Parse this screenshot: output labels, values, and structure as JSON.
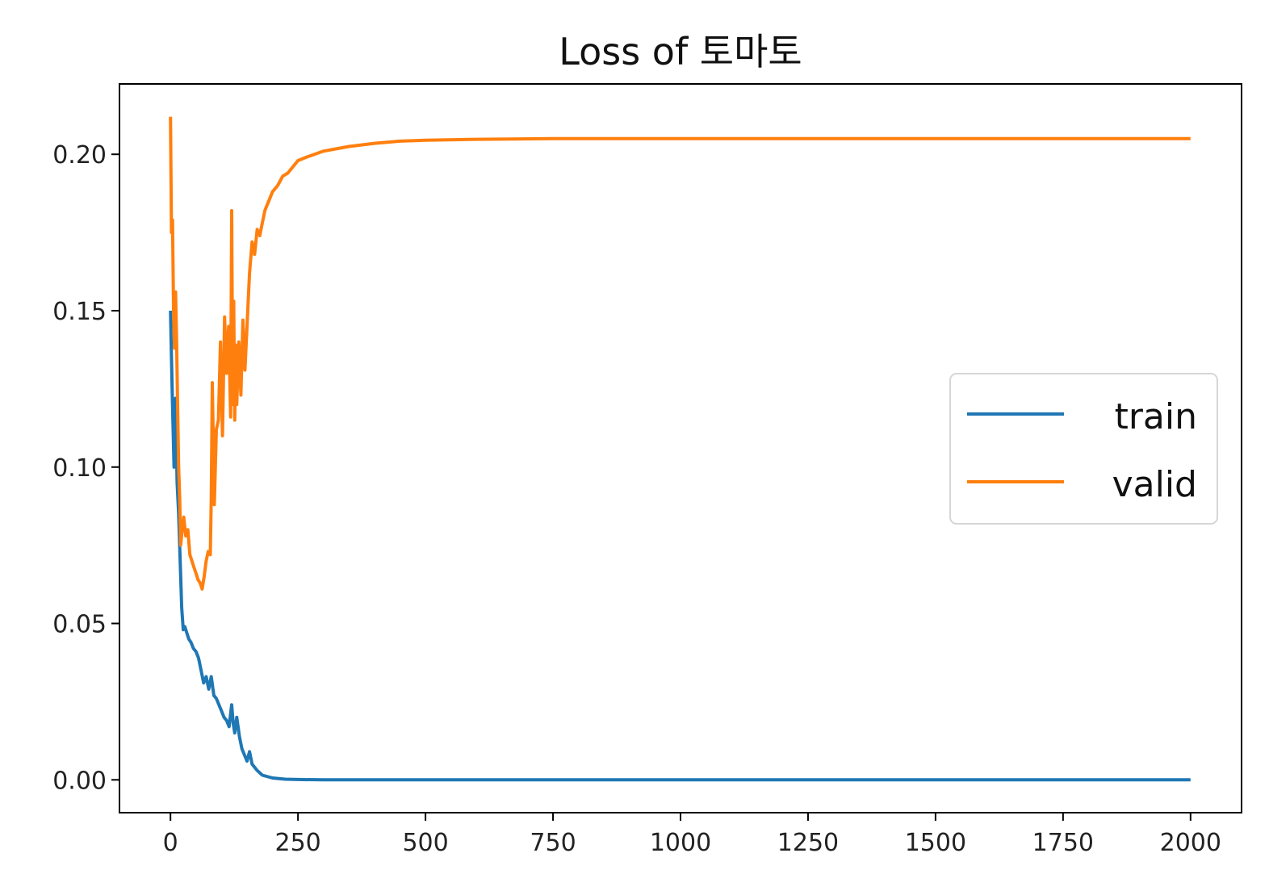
{
  "chart_data": {
    "type": "line",
    "title": "Loss of 토마토",
    "xlabel": "",
    "ylabel": "",
    "xlim": [
      -100,
      2100
    ],
    "ylim": [
      -0.0105,
      0.2225
    ],
    "xticks": [
      0,
      250,
      500,
      750,
      1000,
      1250,
      1500,
      1750,
      2000
    ],
    "xtick_labels": [
      "0",
      "250",
      "500",
      "750",
      "1000",
      "1250",
      "1500",
      "1750",
      "2000"
    ],
    "yticks": [
      0.0,
      0.05,
      0.1,
      0.15,
      0.2
    ],
    "ytick_labels": [
      "0.00",
      "0.05",
      "0.10",
      "0.15",
      "0.20"
    ],
    "grid": false,
    "legend_position": "right",
    "series": [
      {
        "name": "train",
        "color": "#1f77b4",
        "x": [
          0,
          2,
          4,
          7,
          10,
          13,
          16,
          19,
          22,
          25,
          28,
          32,
          36,
          40,
          45,
          50,
          55,
          60,
          65,
          70,
          75,
          80,
          85,
          90,
          95,
          100,
          105,
          110,
          115,
          120,
          123,
          126,
          130,
          135,
          140,
          145,
          150,
          155,
          160,
          170,
          180,
          200,
          225,
          250,
          300,
          400,
          500,
          750,
          1000,
          1250,
          1500,
          1750,
          2000
        ],
        "y": [
          0.15,
          0.135,
          0.12,
          0.1,
          0.122,
          0.095,
          0.085,
          0.07,
          0.055,
          0.048,
          0.049,
          0.047,
          0.045,
          0.044,
          0.042,
          0.041,
          0.039,
          0.035,
          0.031,
          0.033,
          0.029,
          0.033,
          0.027,
          0.026,
          0.024,
          0.022,
          0.02,
          0.019,
          0.017,
          0.024,
          0.018,
          0.015,
          0.02,
          0.014,
          0.01,
          0.008,
          0.006,
          0.009,
          0.005,
          0.003,
          0.0015,
          0.0006,
          0.0002,
          0.0001,
          0.0,
          0.0,
          0.0,
          0.0,
          0.0,
          0.0,
          0.0,
          0.0,
          0.0
        ],
        "annotations": []
      },
      {
        "name": "valid",
        "color": "#ff7f0e",
        "x": [
          0,
          2,
          4,
          6,
          8,
          10,
          12,
          14,
          16,
          18,
          20,
          23,
          26,
          30,
          34,
          38,
          42,
          46,
          50,
          54,
          58,
          62,
          66,
          70,
          74,
          78,
          80,
          82,
          86,
          90,
          94,
          98,
          102,
          106,
          110,
          114,
          118,
          120,
          122,
          124,
          126,
          128,
          130,
          134,
          138,
          142,
          146,
          150,
          155,
          160,
          165,
          170,
          175,
          180,
          185,
          190,
          195,
          200,
          210,
          220,
          230,
          240,
          250,
          265,
          300,
          350,
          400,
          450,
          500,
          600,
          750,
          1000,
          1250,
          1500,
          1750,
          2000
        ],
        "y": [
          0.212,
          0.175,
          0.179,
          0.15,
          0.138,
          0.156,
          0.14,
          0.12,
          0.1,
          0.09,
          0.075,
          0.08,
          0.084,
          0.078,
          0.08,
          0.072,
          0.07,
          0.068,
          0.066,
          0.064,
          0.063,
          0.061,
          0.065,
          0.07,
          0.073,
          0.072,
          0.09,
          0.127,
          0.088,
          0.112,
          0.115,
          0.14,
          0.11,
          0.148,
          0.13,
          0.145,
          0.116,
          0.182,
          0.12,
          0.153,
          0.115,
          0.139,
          0.12,
          0.14,
          0.123,
          0.147,
          0.131,
          0.145,
          0.162,
          0.172,
          0.168,
          0.176,
          0.174,
          0.178,
          0.182,
          0.184,
          0.186,
          0.188,
          0.19,
          0.193,
          0.194,
          0.196,
          0.198,
          0.199,
          0.201,
          0.2025,
          0.2035,
          0.2042,
          0.2045,
          0.2048,
          0.205,
          0.205,
          0.205,
          0.205,
          0.205,
          0.205
        ]
      }
    ]
  }
}
